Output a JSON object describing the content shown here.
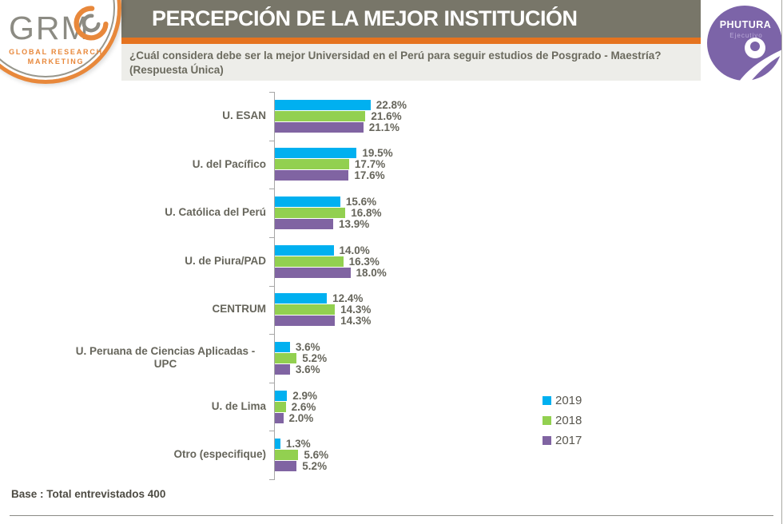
{
  "header": {
    "title": "PERCEPCIÓN DE LA MEJOR INSTITUCIÓN",
    "question": "¿Cuál considera debe ser la mejor Universidad en el Perú para seguir estudios de Posgrado - Maestría? (Respuesta Única)",
    "bar_color": "#787669",
    "accent_color": "#E5731F",
    "question_bg": "#EDEDE9"
  },
  "logos": {
    "grm": {
      "acronym": "GRM",
      "tagline_line1": "GLOBAL RESEARCH",
      "tagline_line2": "MARKETING",
      "orange": "#E8883B",
      "gray": "#8C8B83"
    },
    "phutura": {
      "name": "PHUTURA",
      "subtitle": "Ejecutivo",
      "purple": "#7C64A8"
    }
  },
  "chart_data": {
    "type": "bar",
    "orientation": "horizontal",
    "title": "PERCEPCIÓN DE LA MEJOR INSTITUCIÓN",
    "categories": [
      "U. ESAN",
      "U. del Pacífico",
      "U. Católica del Perú",
      "U. de Piura/PAD",
      "CENTRUM",
      "U. Peruana de Ciencias Aplicadas - UPC",
      "U. de Lima",
      "Otro (especifique)"
    ],
    "series": [
      {
        "name": "2019",
        "color": "#00B0F0",
        "values": [
          22.8,
          19.5,
          15.6,
          14.0,
          12.4,
          3.6,
          2.9,
          1.3
        ]
      },
      {
        "name": "2018",
        "color": "#92D050",
        "values": [
          21.6,
          17.7,
          16.8,
          16.3,
          14.3,
          5.2,
          2.6,
          5.6
        ]
      },
      {
        "name": "2017",
        "color": "#8064A2",
        "values": [
          21.1,
          17.6,
          13.9,
          18.0,
          14.3,
          3.6,
          2.0,
          5.2
        ]
      }
    ],
    "value_label_suffix": "%",
    "xlim": [
      0,
      25
    ],
    "grid": false,
    "legend_position": "right",
    "legend_entries": [
      "2019",
      "2018",
      "2017"
    ]
  },
  "footer": {
    "base_note": "Base : Total entrevistados 400"
  }
}
